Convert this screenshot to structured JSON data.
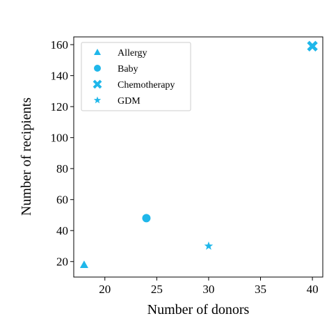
{
  "chart_data": {
    "type": "scatter",
    "xlabel": "Number of donors",
    "ylabel": "Number of recipients",
    "xlim": [
      17,
      41
    ],
    "ylim": [
      10,
      165
    ],
    "xticks": [
      20,
      25,
      30,
      35,
      40
    ],
    "yticks": [
      20,
      40,
      60,
      80,
      100,
      120,
      140,
      160
    ],
    "grid": false,
    "legend_position": "top-left",
    "color": "#1fb7ea",
    "series": [
      {
        "name": "Allergy",
        "marker": "triangle",
        "points": [
          {
            "x": 18,
            "y": 18
          }
        ]
      },
      {
        "name": "Baby",
        "marker": "circle",
        "points": [
          {
            "x": 24,
            "y": 48
          }
        ]
      },
      {
        "name": "Chemotherapy",
        "marker": "x",
        "points": [
          {
            "x": 40,
            "y": 159
          }
        ]
      },
      {
        "name": "GDM",
        "marker": "star",
        "points": [
          {
            "x": 30,
            "y": 30
          }
        ]
      }
    ]
  }
}
